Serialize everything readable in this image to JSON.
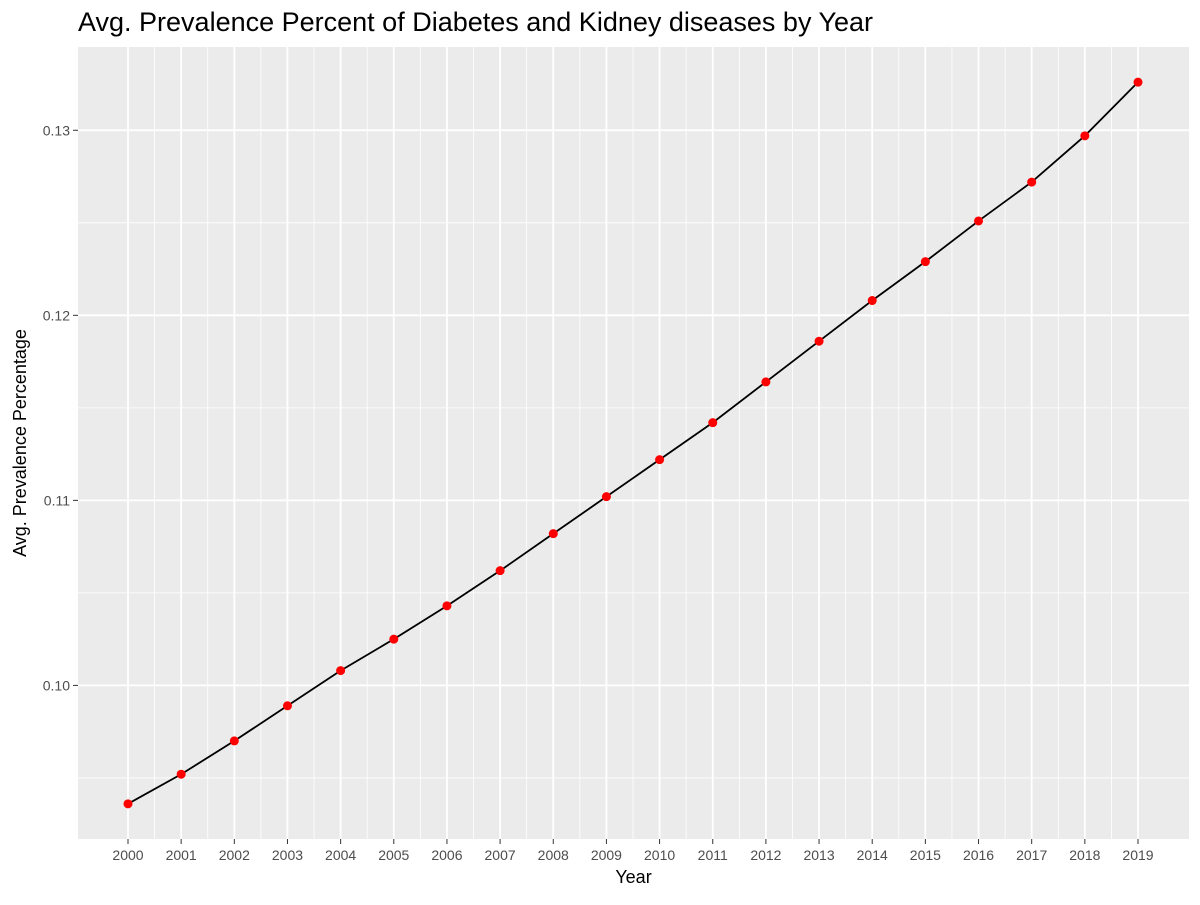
{
  "chart_data": {
    "type": "line",
    "title": "Avg. Prevalence Percent of Diabetes and Kidney diseases by Year",
    "xlabel": "Year",
    "ylabel": "Avg. Prevalence Percentage",
    "x": [
      "2000",
      "2001",
      "2002",
      "2003",
      "2004",
      "2005",
      "2006",
      "2007",
      "2008",
      "2009",
      "2010",
      "2011",
      "2012",
      "2013",
      "2014",
      "2015",
      "2016",
      "2017",
      "2018",
      "2019"
    ],
    "series": [
      {
        "values": [
          0.0936,
          0.0952,
          0.097,
          0.0989,
          0.1008,
          0.1025,
          0.1043,
          0.1062,
          0.1082,
          0.1102,
          0.1122,
          0.1142,
          0.1164,
          0.1186,
          0.1208,
          0.1229,
          0.1251,
          0.1272,
          0.1297,
          0.1326
        ]
      }
    ],
    "yticks": [
      "0.10",
      "0.11",
      "0.12",
      "0.13"
    ],
    "ytick_values": [
      0.1,
      0.11,
      0.12,
      0.13
    ],
    "ylim": [
      0.0917,
      0.1345
    ],
    "grid": true,
    "colors": {
      "panel": "#ebebeb",
      "grid": "#ffffff",
      "line": "#000000",
      "points": "#ff0000"
    }
  }
}
